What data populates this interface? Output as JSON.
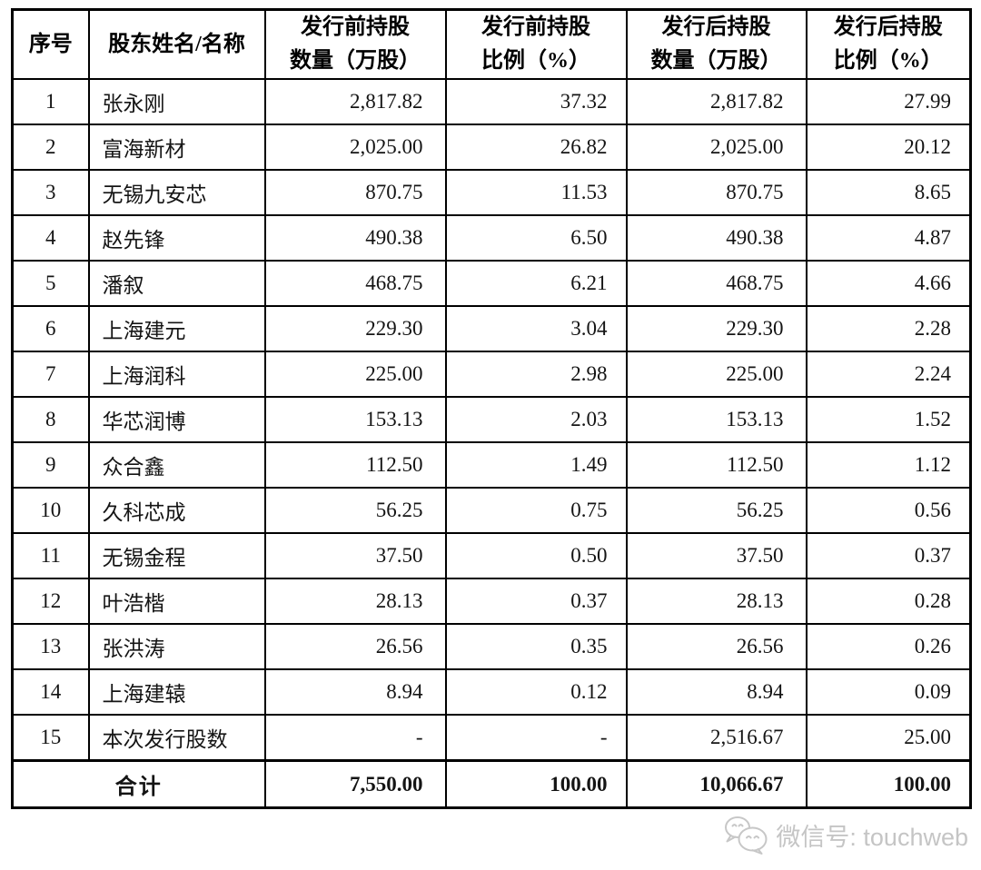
{
  "table": {
    "columns": [
      {
        "label": "序号"
      },
      {
        "label": "股东姓名/名称"
      },
      {
        "label": "发行前持股\n数量（万股）"
      },
      {
        "label": "发行前持股\n比例（%）"
      },
      {
        "label": "发行后持股\n数量（万股）"
      },
      {
        "label": "发行后持股\n比例（%）"
      }
    ],
    "rows": [
      [
        "1",
        "张永刚",
        "2,817.82",
        "37.32",
        "2,817.82",
        "27.99"
      ],
      [
        "2",
        "富海新材",
        "2,025.00",
        "26.82",
        "2,025.00",
        "20.12"
      ],
      [
        "3",
        "无锡九安芯",
        "870.75",
        "11.53",
        "870.75",
        "8.65"
      ],
      [
        "4",
        "赵先锋",
        "490.38",
        "6.50",
        "490.38",
        "4.87"
      ],
      [
        "5",
        "潘叙",
        "468.75",
        "6.21",
        "468.75",
        "4.66"
      ],
      [
        "6",
        "上海建元",
        "229.30",
        "3.04",
        "229.30",
        "2.28"
      ],
      [
        "7",
        "上海润科",
        "225.00",
        "2.98",
        "225.00",
        "2.24"
      ],
      [
        "8",
        "华芯润博",
        "153.13",
        "2.03",
        "153.13",
        "1.52"
      ],
      [
        "9",
        "众合鑫",
        "112.50",
        "1.49",
        "112.50",
        "1.12"
      ],
      [
        "10",
        "久科芯成",
        "56.25",
        "0.75",
        "56.25",
        "0.56"
      ],
      [
        "11",
        "无锡金程",
        "37.50",
        "0.50",
        "37.50",
        "0.37"
      ],
      [
        "12",
        "叶浩楷",
        "28.13",
        "0.37",
        "28.13",
        "0.28"
      ],
      [
        "13",
        "张洪涛",
        "26.56",
        "0.35",
        "26.56",
        "0.26"
      ],
      [
        "14",
        "上海建辕",
        "8.94",
        "0.12",
        "8.94",
        "0.09"
      ],
      [
        "15",
        "本次发行股数",
        "-",
        "-",
        "2,516.67",
        "25.00"
      ]
    ],
    "total_row": {
      "label": "合计",
      "values": [
        "7,550.00",
        "100.00",
        "10,066.67",
        "100.00"
      ]
    }
  },
  "footer": {
    "wechat_label": "微信号: touchweb",
    "icon": "wechat-icon"
  },
  "colors": {
    "border": "#000000",
    "text": "#141414",
    "watermark": "#c5c5c5"
  }
}
